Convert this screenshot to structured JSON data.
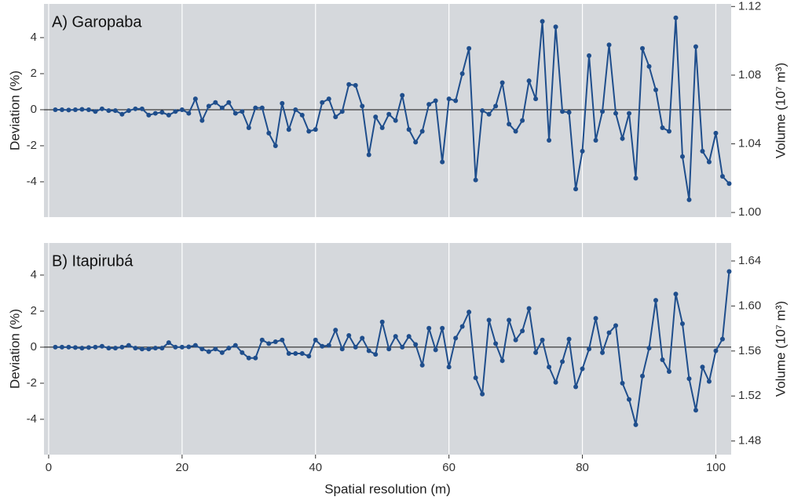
{
  "chart_data": [
    {
      "type": "line",
      "title": "A) Garopaba",
      "ylabel": "Deviation (%)",
      "y2label": "Volume (10⁷ m³)",
      "x": [
        1,
        2,
        3,
        4,
        5,
        6,
        7,
        8,
        9,
        10,
        11,
        12,
        13,
        14,
        15,
        16,
        17,
        18,
        19,
        20,
        21,
        22,
        23,
        24,
        25,
        26,
        27,
        28,
        29,
        30,
        31,
        32,
        33,
        34,
        35,
        36,
        37,
        38,
        39,
        40,
        41,
        42,
        43,
        44,
        45,
        46,
        47,
        48,
        49,
        50,
        51,
        52,
        53,
        54,
        55,
        56,
        57,
        58,
        59,
        60,
        61,
        62,
        63,
        64,
        65,
        66,
        67,
        68,
        69,
        70,
        71,
        72,
        73,
        74,
        75,
        76,
        77,
        78,
        79,
        80,
        81,
        82,
        83,
        84,
        85,
        86,
        87,
        88,
        89,
        90,
        91,
        92,
        93,
        94,
        95,
        96,
        97,
        98,
        99,
        100,
        101,
        102
      ],
      "series": [
        {
          "color": "#1f4e8c",
          "values": [
            0,
            0,
            -0.02,
            0,
            0.02,
            0,
            -0.1,
            0.05,
            -0.05,
            -0.05,
            -0.25,
            -0.05,
            0.05,
            0.05,
            -0.3,
            -0.2,
            -0.15,
            -0.3,
            -0.1,
            0,
            -0.2,
            0.6,
            -0.6,
            0.2,
            0.4,
            0.1,
            0.4,
            -0.2,
            -0.1,
            -1.0,
            0.1,
            0.1,
            -1.3,
            -2.0,
            0.35,
            -1.1,
            0,
            -0.3,
            -1.2,
            -1.1,
            0.4,
            0.6,
            -0.4,
            -0.1,
            1.4,
            1.35,
            0.2,
            -2.5,
            -0.4,
            -1.0,
            -0.25,
            -0.6,
            0.8,
            -1.1,
            -1.8,
            -1.2,
            0.3,
            0.5,
            -2.9,
            0.6,
            0.5,
            2.0,
            3.4,
            -3.9,
            -0.05,
            -0.25,
            0.2,
            1.5,
            -0.8,
            -1.2,
            -0.6,
            1.6,
            0.6,
            4.9,
            -1.7,
            4.6,
            -0.1,
            -0.15,
            -4.4,
            -2.3,
            3.0,
            -1.7,
            -0.1,
            3.6,
            -0.2,
            -1.6,
            -0.2,
            -3.8,
            3.4,
            2.4,
            1.1,
            -1.0,
            -1.2,
            5.1,
            -2.6,
            -5.0,
            3.5,
            -2.3,
            -2.9,
            -1.3,
            -3.7,
            -4.1
          ]
        }
      ],
      "xlim": [
        -0.7,
        102.3
      ],
      "xticks": [
        0,
        20,
        40,
        60,
        80,
        100
      ],
      "ylim": [
        -5.96,
        5.87
      ],
      "yticks": [
        -4,
        -2,
        0,
        2,
        4
      ],
      "y2lim": [
        0.9973,
        1.1215
      ],
      "y2ticks": [
        {
          "value": 1,
          "label": "1.00"
        },
        1.04,
        1.08,
        1.12
      ],
      "hline": 0,
      "grid": true
    },
    {
      "type": "line",
      "title": "B) Itapirubá",
      "ylabel": "Deviation (%)",
      "y2label": "Volume (10⁷ m³)",
      "xlabel": "Spatial resolution (m)",
      "x": [
        1,
        2,
        3,
        4,
        5,
        6,
        7,
        8,
        9,
        10,
        11,
        12,
        13,
        14,
        15,
        16,
        17,
        18,
        19,
        20,
        21,
        22,
        23,
        24,
        25,
        26,
        27,
        28,
        29,
        30,
        31,
        32,
        33,
        34,
        35,
        36,
        37,
        38,
        39,
        40,
        41,
        42,
        43,
        44,
        45,
        46,
        47,
        48,
        49,
        50,
        51,
        52,
        53,
        54,
        55,
        56,
        57,
        58,
        59,
        60,
        61,
        62,
        63,
        64,
        65,
        66,
        67,
        68,
        69,
        70,
        71,
        72,
        73,
        74,
        75,
        76,
        77,
        78,
        79,
        80,
        81,
        82,
        83,
        84,
        85,
        86,
        87,
        88,
        89,
        90,
        91,
        92,
        93,
        94,
        95,
        96,
        97,
        98,
        99,
        100,
        101,
        102
      ],
      "series": [
        {
          "color": "#1f4e8c",
          "values": [
            0,
            0,
            0,
            -0.02,
            -0.05,
            -0.02,
            0,
            0.05,
            -0.05,
            -0.05,
            0,
            0.1,
            -0.05,
            -0.1,
            -0.1,
            -0.05,
            -0.05,
            0.25,
            0,
            0,
            0.02,
            0.1,
            -0.1,
            -0.25,
            -0.1,
            -0.3,
            -0.05,
            0.1,
            -0.3,
            -0.6,
            -0.6,
            0.4,
            0.2,
            0.3,
            0.4,
            -0.35,
            -0.35,
            -0.35,
            -0.5,
            0.4,
            0.05,
            0.1,
            0.95,
            -0.1,
            0.65,
            0,
            0.5,
            -0.2,
            -0.4,
            1.4,
            -0.1,
            0.6,
            0,
            0.6,
            0.15,
            -1.0,
            1.05,
            -0.15,
            1.05,
            -1.1,
            0.5,
            1.15,
            1.95,
            -1.7,
            -2.6,
            1.5,
            0.2,
            -0.75,
            1.5,
            0.4,
            0.9,
            2.15,
            -0.3,
            0.4,
            -1.1,
            -1.95,
            -0.8,
            0.45,
            -2.2,
            -1.2,
            -0.1,
            1.6,
            -0.3,
            0.8,
            1.2,
            -2.0,
            -2.9,
            -4.3,
            -1.6,
            -0.05,
            2.6,
            -0.7,
            -1.35,
            2.95,
            1.3,
            -1.75,
            -3.5,
            -1.1,
            -1.9,
            -0.2,
            0.45,
            4.2
          ]
        }
      ],
      "xlim": [
        -0.7,
        102.3
      ],
      "xticks": [
        0,
        20,
        40,
        60,
        80,
        100
      ],
      "ylim": [
        -5.96,
        5.78
      ],
      "yticks": [
        -4,
        -2,
        0,
        2,
        4
      ],
      "y2lim": [
        1.4679,
        1.656
      ],
      "y2ticks": [
        1.48,
        1.52,
        1.56,
        {
          "value": 1.6,
          "label": "1.60"
        },
        1.64
      ],
      "hline": 0,
      "grid": true
    }
  ]
}
